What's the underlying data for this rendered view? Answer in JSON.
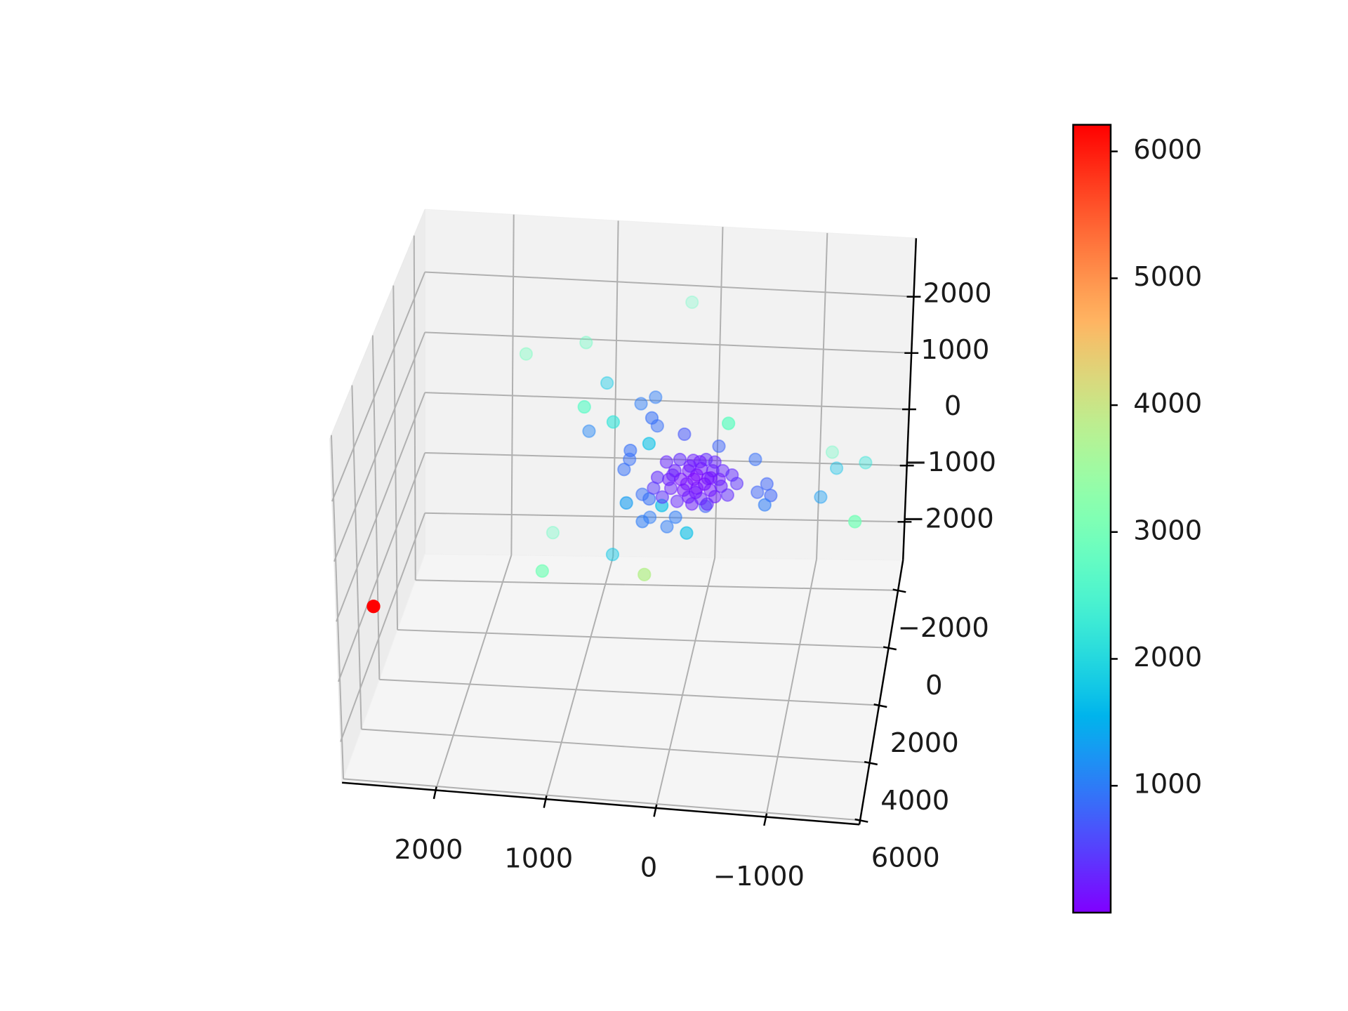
{
  "chart_data": {
    "type": "scatter3d",
    "cmap": "rainbow",
    "grid": true,
    "x": [
      240,
      1740,
      1170,
      930,
      570,
      440,
      950,
      720,
      1060,
      410,
      400,
      110,
      -450,
      400,
      -190,
      610,
      660,
      690,
      -530,
      -1170,
      -1530,
      -1240,
      -660,
      -710,
      -560,
      -660,
      -1120,
      -1620,
      610,
      530,
      430,
      250,
      470,
      500,
      300,
      200,
      30,
      -70,
      1500,
      830,
      1310,
      290,
      2570,
      290,
      150,
      50,
      -90,
      -160,
      190,
      100,
      -40,
      -160,
      -230,
      260,
      160,
      30,
      -120,
      -190,
      -330,
      360,
      260,
      120,
      0,
      -120,
      -240,
      60,
      -20,
      -170,
      200,
      40,
      -110,
      410,
      -370,
      320,
      -290,
      10,
      -90,
      110,
      0,
      -130,
      250,
      60,
      -20
    ],
    "y": [
      -2500,
      -1500,
      -1500,
      -1000,
      -500,
      -600,
      1500,
      1000,
      -500,
      300,
      -300,
      200,
      2500,
      800,
      -200,
      300,
      -300,
      0,
      -300,
      -2000,
      -1200,
      -1500,
      0,
      200,
      -200,
      300,
      -1000,
      2500,
      800,
      -200,
      300,
      1200,
      -400,
      200,
      -300,
      0,
      1000,
      -200,
      -1800,
      -500,
      2000,
      3000,
      5500,
      0,
      200,
      -200,
      100,
      -100,
      300,
      -300,
      0,
      200,
      -200,
      100,
      -100,
      0,
      300,
      -300,
      0,
      200,
      -200,
      100,
      0,
      -100,
      200,
      300,
      -300,
      0,
      -200,
      100,
      200,
      0,
      -100,
      100,
      0,
      -100,
      300,
      -200,
      200,
      0,
      -300,
      100,
      -100
    ],
    "z": [
      1970,
      1390,
      1640,
      1200,
      1110,
      1190,
      1910,
      1460,
      590,
      1250,
      840,
      960,
      2300,
      1040,
      600,
      670,
      240,
      200,
      360,
      -280,
      -40,
      -310,
      90,
      -10,
      -160,
      -130,
      -580,
      770,
      0,
      -300,
      -140,
      180,
      -780,
      -580,
      -880,
      -570,
      -360,
      -450,
      -1740,
      -1490,
      -700,
      -180,
      30,
      370,
      520,
      330,
      500,
      370,
      370,
      100,
      290,
      360,
      180,
      120,
      40,
      100,
      270,
      -20,
      210,
      190,
      -170,
      -50,
      -50,
      -120,
      100,
      -70,
      -370,
      -180,
      -390,
      -280,
      -220,
      -90,
      20,
      -190,
      -140,
      130,
      170,
      -80,
      -30,
      140,
      10,
      370,
      360
    ],
    "c": [
      2800,
      2900,
      2800,
      1800,
      1000,
      1000,
      2700,
      2200,
      1100,
      900,
      900,
      700,
      2800,
      1700,
      800,
      900,
      900,
      900,
      900,
      2800,
      2200,
      1700,
      800,
      800,
      800,
      1000,
      1300,
      3000,
      1300,
      900,
      900,
      1700,
      1000,
      1000,
      1000,
      1000,
      1700,
      800,
      2800,
      1800,
      3000,
      3800,
      6210,
      300,
      350,
      250,
      350,
      300,
      250,
      150,
      200,
      250,
      300,
      200,
      100,
      50,
      150,
      200,
      350,
      350,
      250,
      150,
      100,
      150,
      250,
      200,
      250,
      200,
      300,
      250,
      300,
      450,
      400,
      400,
      350,
      50,
      100,
      100,
      150,
      150,
      250,
      200,
      200
    ],
    "xlim": [
      -1850,
      2850
    ],
    "ylim": [
      -3050,
      6150
    ],
    "zlim": [
      -2680,
      3040
    ],
    "xticks": [
      2000,
      1000,
      0,
      {
        "value": -1000,
        "label": "−1000"
      }
    ],
    "yticks": [
      {
        "value": -2000,
        "label": "−2000"
      },
      0,
      2000,
      4000,
      6000
    ],
    "zticks": [
      2000,
      1000,
      0,
      {
        "value": -1000,
        "label": "−1000"
      },
      {
        "value": -2000,
        "label": "−2000"
      }
    ],
    "clim": [
      0,
      6210
    ],
    "cticks": [
      1000,
      2000,
      3000,
      4000,
      5000,
      6000
    ]
  }
}
